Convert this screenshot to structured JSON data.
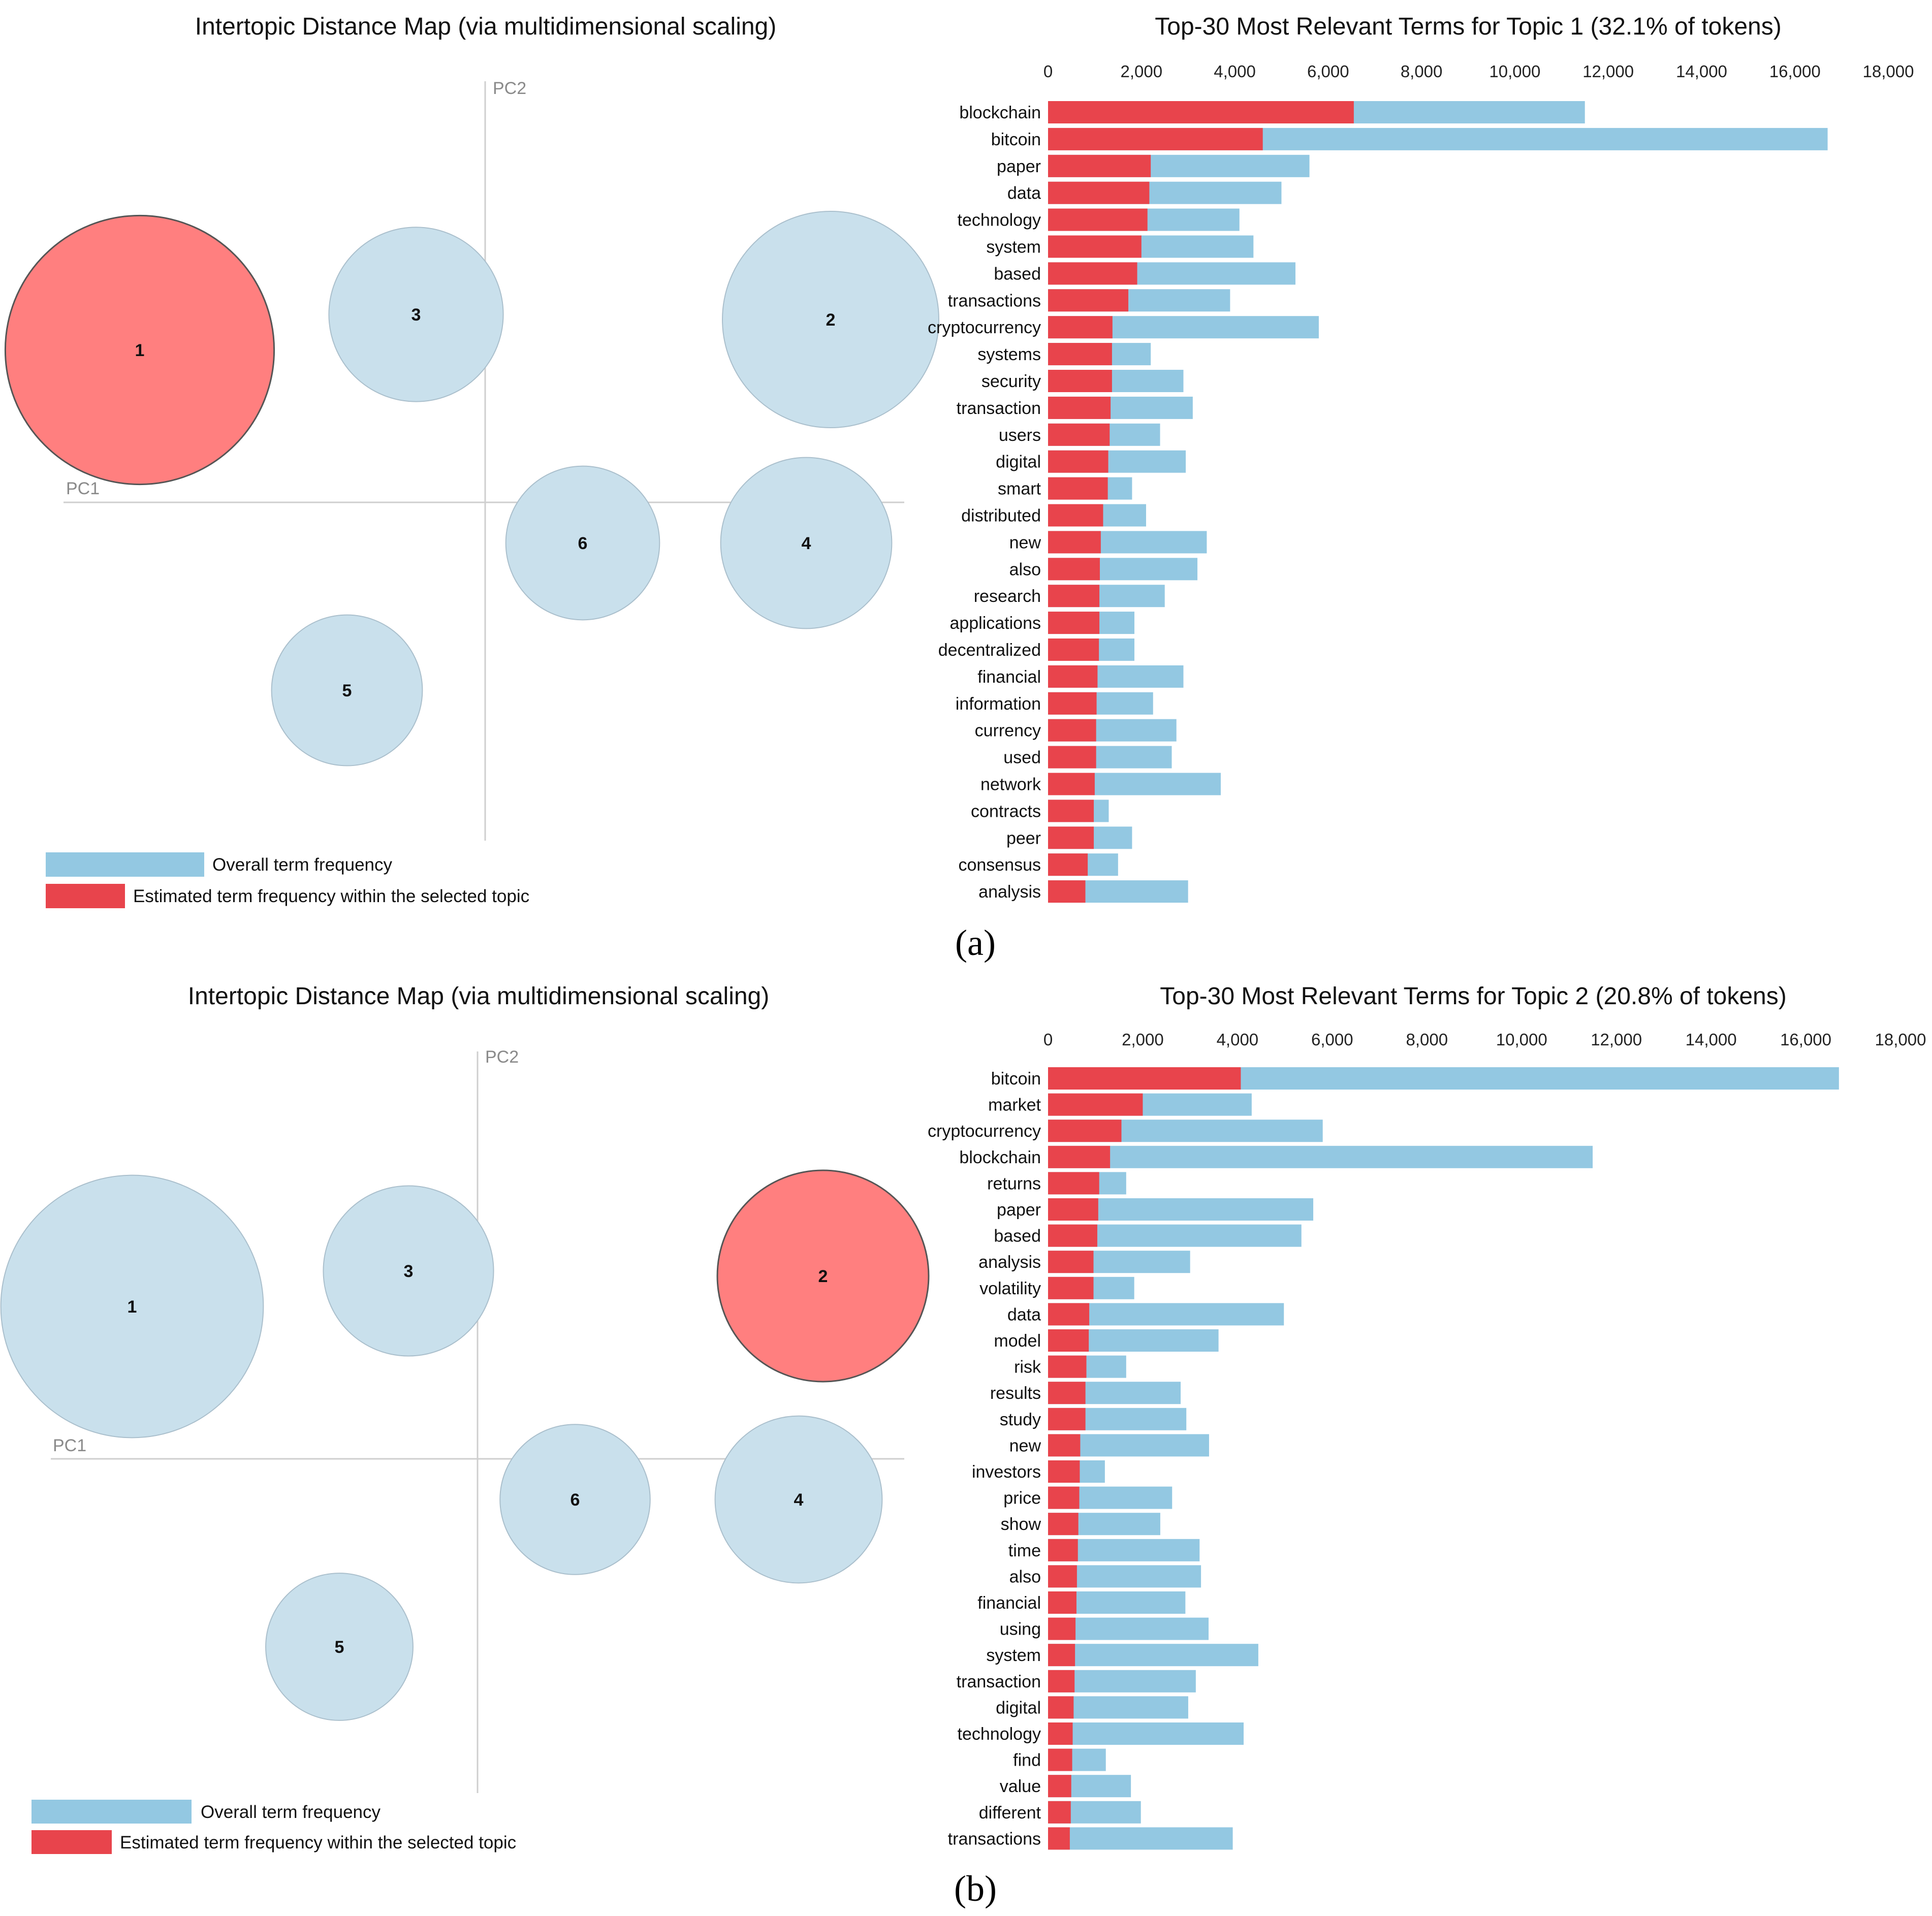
{
  "colors": {
    "overall": "#93c8e2",
    "topic": "#e8444c",
    "bubble": "#c9e0ec",
    "bubble_stroke": "#aabfcc",
    "bubble_selected": "#ff7f7f",
    "bubble_selected_stroke": "#555555",
    "axis": "#cccccc",
    "axis_text": "#888888",
    "text": "#111111"
  },
  "panels": [
    {
      "id": "a",
      "label": "(a)",
      "map_title": "Intertopic Distance Map (via multidimensional scaling)",
      "pc1_label": "PC1",
      "pc2_label": "PC2",
      "selected_topic": "1",
      "legend": {
        "overall": "Overall term frequency",
        "topic": "Estimated term frequency within the selected topic"
      }
    },
    {
      "id": "b",
      "label": "(b)",
      "map_title": "Intertopic Distance Map (via multidimensional scaling)",
      "pc1_label": "PC1",
      "pc2_label": "PC2",
      "selected_topic": "2",
      "legend": {
        "overall": "Overall term frequency",
        "topic": "Estimated term frequency within the selected topic"
      }
    }
  ],
  "chart_data": [
    {
      "type": "scatter",
      "title": "Intertopic Distance Map (via multidimensional scaling)",
      "xlabel": "PC1",
      "ylabel": "PC2",
      "selected": "1",
      "topics": [
        {
          "label": "1",
          "pc1": -0.85,
          "pc2": 0.3,
          "size": 32.1
        },
        {
          "label": "2",
          "pc1": 0.85,
          "pc2": 0.36,
          "size": 20.8
        },
        {
          "label": "3",
          "pc1": -0.17,
          "pc2": 0.37,
          "size": 13.5
        },
        {
          "label": "4",
          "pc1": 0.79,
          "pc2": -0.08,
          "size": 13.0
        },
        {
          "label": "5",
          "pc1": -0.34,
          "pc2": -0.37,
          "size": 10.1
        },
        {
          "label": "6",
          "pc1": 0.24,
          "pc2": -0.08,
          "size": 10.5
        }
      ]
    },
    {
      "type": "bar",
      "orientation": "horizontal",
      "stacked": "overlay",
      "title": "Top-30 Most Relevant Terms for Topic 1 (32.1% of tokens)",
      "xlim": [
        0,
        18000
      ],
      "ticks": [
        "0",
        "2,000",
        "4,000",
        "6,000",
        "8,000",
        "10,000",
        "12,000",
        "14,000",
        "16,000",
        "18,000"
      ],
      "categories": [
        "blockchain",
        "bitcoin",
        "paper",
        "data",
        "technology",
        "system",
        "based",
        "transactions",
        "cryptocurrency",
        "systems",
        "security",
        "transaction",
        "users",
        "digital",
        "smart",
        "distributed",
        "new",
        "also",
        "research",
        "applications",
        "decentralized",
        "financial",
        "information",
        "currency",
        "used",
        "network",
        "contracts",
        "peer",
        "consensus",
        "analysis"
      ],
      "series": [
        {
          "name": "Overall term frequency",
          "values": [
            11500,
            16700,
            5600,
            5000,
            4100,
            4400,
            5300,
            3900,
            5800,
            2200,
            2900,
            3100,
            2400,
            2950,
            1800,
            2100,
            3400,
            3200,
            2500,
            1850,
            1850,
            2900,
            2250,
            2750,
            2650,
            3700,
            1300,
            1800,
            1500,
            3000
          ]
        },
        {
          "name": "Estimated term frequency within the selected topic",
          "values": [
            6550,
            4600,
            2200,
            2170,
            2130,
            2000,
            1910,
            1720,
            1380,
            1370,
            1370,
            1340,
            1320,
            1290,
            1280,
            1180,
            1130,
            1110,
            1100,
            1100,
            1090,
            1060,
            1040,
            1030,
            1030,
            1000,
            980,
            980,
            850,
            800
          ]
        }
      ]
    },
    {
      "type": "scatter",
      "title": "Intertopic Distance Map (via multidimensional scaling)",
      "xlabel": "PC1",
      "ylabel": "PC2",
      "selected": "2",
      "topics": [
        {
          "label": "1",
          "pc1": -0.85,
          "pc2": 0.3,
          "size": 32.1
        },
        {
          "label": "2",
          "pc1": 0.85,
          "pc2": 0.36,
          "size": 20.8
        },
        {
          "label": "3",
          "pc1": -0.17,
          "pc2": 0.37,
          "size": 13.5
        },
        {
          "label": "4",
          "pc1": 0.79,
          "pc2": -0.08,
          "size": 13.0
        },
        {
          "label": "5",
          "pc1": -0.34,
          "pc2": -0.37,
          "size": 10.1
        },
        {
          "label": "6",
          "pc1": 0.24,
          "pc2": -0.08,
          "size": 10.5
        }
      ]
    },
    {
      "type": "bar",
      "orientation": "horizontal",
      "stacked": "overlay",
      "title": "Top-30 Most Relevant Terms for Topic 2 (20.8% of tokens)",
      "xlim": [
        0,
        18000
      ],
      "ticks": [
        "0",
        "2,000",
        "4,000",
        "6,000",
        "8,000",
        "10,000",
        "12,000",
        "14,000",
        "16,000",
        "18,000"
      ],
      "categories": [
        "bitcoin",
        "market",
        "cryptocurrency",
        "blockchain",
        "returns",
        "paper",
        "based",
        "analysis",
        "volatility",
        "data",
        "model",
        "risk",
        "results",
        "study",
        "new",
        "investors",
        "price",
        "show",
        "time",
        "also",
        "financial",
        "using",
        "system",
        "transaction",
        "digital",
        "technology",
        "find",
        "value",
        "different",
        "transactions"
      ],
      "series": [
        {
          "name": "Overall term frequency",
          "values": [
            16700,
            4300,
            5800,
            11500,
            1650,
            5600,
            5350,
            3000,
            1820,
            4980,
            3600,
            1650,
            2800,
            2920,
            3400,
            1200,
            2620,
            2370,
            3200,
            3230,
            2900,
            3390,
            4440,
            3120,
            2960,
            4130,
            1220,
            1750,
            1960,
            3900
          ]
        },
        {
          "name": "Estimated term frequency within the selected topic",
          "values": [
            4070,
            2000,
            1550,
            1310,
            1080,
            1060,
            1040,
            960,
            960,
            870,
            860,
            810,
            790,
            790,
            680,
            670,
            660,
            640,
            630,
            610,
            600,
            580,
            570,
            560,
            540,
            520,
            510,
            490,
            480,
            460
          ]
        }
      ]
    }
  ]
}
